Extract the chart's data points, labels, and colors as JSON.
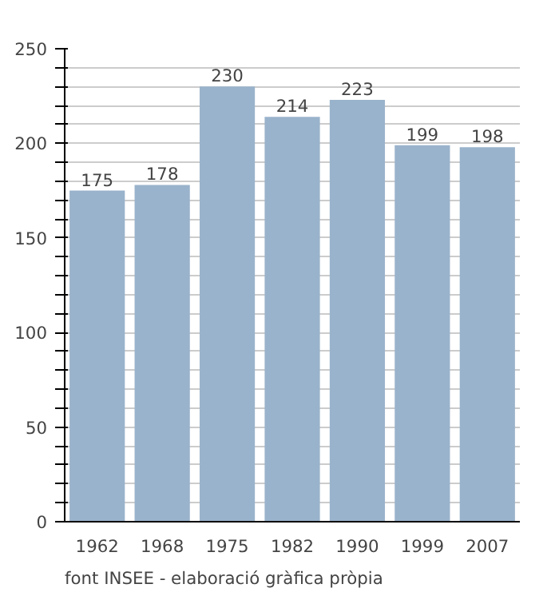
{
  "chart_data": {
    "type": "bar",
    "categories": [
      "1962",
      "1968",
      "1975",
      "1982",
      "1990",
      "1999",
      "2007"
    ],
    "values": [
      175,
      178,
      230,
      214,
      223,
      199,
      198
    ],
    "color": "#9ab3cc",
    "data_labels": true,
    "ylim": [
      0,
      250
    ],
    "yticks": [
      0,
      {
        "value": 10,
        "label": null
      },
      {
        "value": 20,
        "label": null
      },
      {
        "value": 30,
        "label": null
      },
      {
        "value": 40,
        "label": null
      },
      50,
      {
        "value": 60,
        "label": null
      },
      {
        "value": 70,
        "label": null
      },
      {
        "value": 80,
        "label": null
      },
      {
        "value": 90,
        "label": null
      },
      100,
      {
        "value": 110,
        "label": null
      },
      {
        "value": 120,
        "label": null
      },
      {
        "value": 130,
        "label": null
      },
      {
        "value": 140,
        "label": null
      },
      150,
      {
        "value": 160,
        "label": null
      },
      {
        "value": 170,
        "label": null
      },
      {
        "value": 180,
        "label": null
      },
      {
        "value": 190,
        "label": null
      },
      200,
      {
        "value": 210,
        "label": null
      },
      {
        "value": 220,
        "label": null
      },
      {
        "value": 230,
        "label": null
      },
      {
        "value": 240,
        "label": null
      },
      250
    ],
    "grid": "y",
    "annotations": [
      "font INSEE - elaboració gràfica pròpia"
    ]
  }
}
